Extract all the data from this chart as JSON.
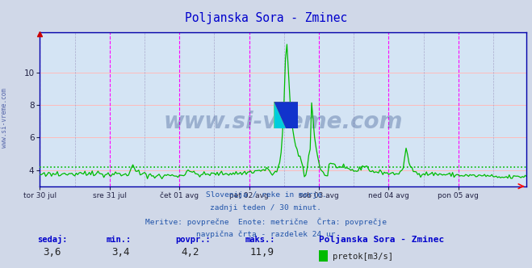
{
  "title": "Poljanska Sora - Zminec",
  "title_color": "#0000cc",
  "bg_color": "#d0d8e8",
  "plot_bg_color": "#d4e4f4",
  "grid_color_h": "#ffbbbb",
  "grid_color_v_minor": "#aaaacc",
  "line_color": "#00bb00",
  "avg_line_color": "#00bb00",
  "avg_value": 4.2,
  "min_value": 3.4,
  "max_value": 11.9,
  "current_value": 3.6,
  "ylim": [
    3.0,
    12.5
  ],
  "yticks": [
    4,
    6,
    8,
    10
  ],
  "x_labels": [
    "tor 30 jul",
    "sre 31 jul",
    "čet 01 avg",
    "pet 02 avg",
    "sob 03 avg",
    "ned 04 avg",
    "pon 05 avg"
  ],
  "subtitle_lines": [
    "Slovenija / reke in morje.",
    "zadnji teden / 30 minut.",
    "Meritve: povprečne  Enote: metrične  Črta: povprečje",
    "navpična črta - razdelek 24 ur"
  ],
  "footer_labels": [
    "sedaj:",
    "min.:",
    "povpr.:",
    "maks.:"
  ],
  "footer_values": [
    "3,6",
    "3,4",
    "4,2",
    "11,9"
  ],
  "footer_station": "Poljanska Sora - Zminec",
  "footer_series": "pretok[m3/s]",
  "watermark_text": "www.si-vreme.com",
  "watermark_color": "#1a3a7a",
  "sidebar_text": "www.si-vreme.com",
  "sidebar_color": "#5566aa",
  "n_points": 336,
  "peak_day": 3.4,
  "peak_val": 11.9
}
